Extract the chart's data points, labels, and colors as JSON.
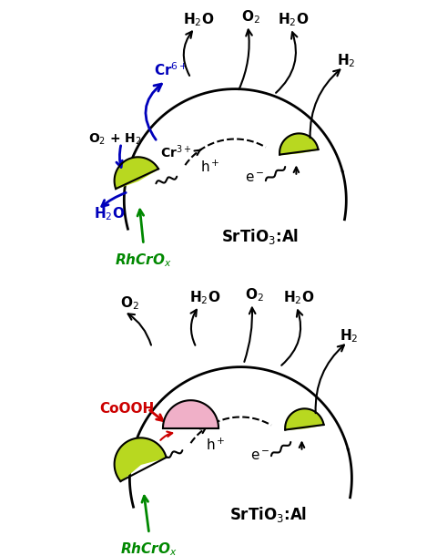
{
  "bg_color": "#ffffff",
  "particle_color": "#b8d820",
  "coooh_color": "#f0b0c8",
  "green_text": "#008800",
  "blue_text": "#0000bb",
  "red_text": "#cc0000",
  "black_text": "#000000"
}
